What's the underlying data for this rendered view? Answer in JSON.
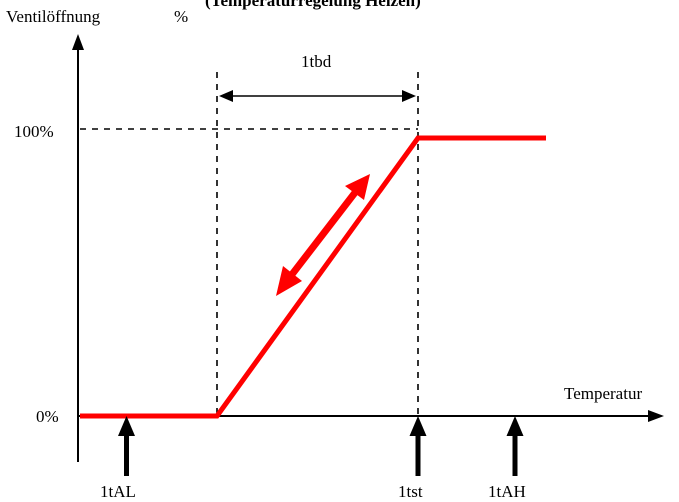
{
  "header": {
    "y_axis_label": "Ventilöffnung",
    "y_axis_unit": "%",
    "clipped_text": "(Temperaturregelung Heizen)"
  },
  "axes": {
    "x_axis_label": "Temperatur",
    "y_tick_max": "100%",
    "y_tick_min": "0%"
  },
  "dimension": {
    "label": "1tbd"
  },
  "markers": [
    {
      "label": "1tAL"
    },
    {
      "label": "1tst"
    },
    {
      "label": "1tAH"
    }
  ],
  "colors": {
    "curve": "#ff0000",
    "axis": "#000000",
    "background": "#ffffff"
  }
}
